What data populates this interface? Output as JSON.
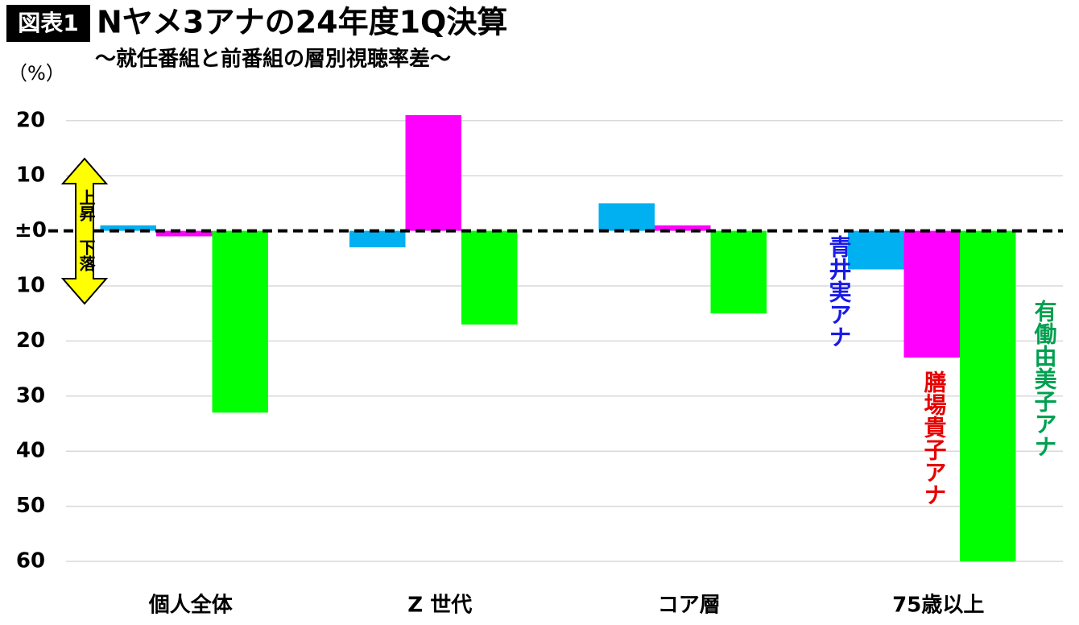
{
  "chart_data": {
    "type": "bar",
    "badge": "図表1",
    "title": "Nヤメ3アナの24年度1Q決算",
    "subtitle": "～就任番組と前番組の層別視聴率差～",
    "y_unit": "（%）",
    "annotations": {
      "up": "上昇",
      "down": "下落"
    },
    "categories": [
      "個人全体",
      "Z 世代",
      "コア層",
      "75歳以上"
    ],
    "series": [
      {
        "name": "青井実アナ",
        "color": "#00b0f0",
        "label_color": "#1a1ae6",
        "values": [
          1,
          -3,
          5,
          -7
        ]
      },
      {
        "name": "膳場貴子アナ",
        "color": "#ff00ff",
        "label_color": "#e60000",
        "values": [
          -1,
          21,
          1,
          -23
        ]
      },
      {
        "name": "有働由美子アナ",
        "color": "#00ff00",
        "label_color": "#00a050",
        "values": [
          -33,
          -17,
          -15,
          -60
        ]
      }
    ],
    "ylim": [
      -60,
      24
    ],
    "yticks": [
      20,
      10,
      {
        "value": 0,
        "label": "±0"
      },
      {
        "value": -10,
        "label": "10"
      },
      {
        "value": -20,
        "label": "20"
      },
      {
        "value": -30,
        "label": "30"
      },
      {
        "value": -40,
        "label": "40"
      },
      {
        "value": -50,
        "label": "50"
      },
      {
        "value": -60,
        "label": "60"
      }
    ],
    "grid": true
  }
}
